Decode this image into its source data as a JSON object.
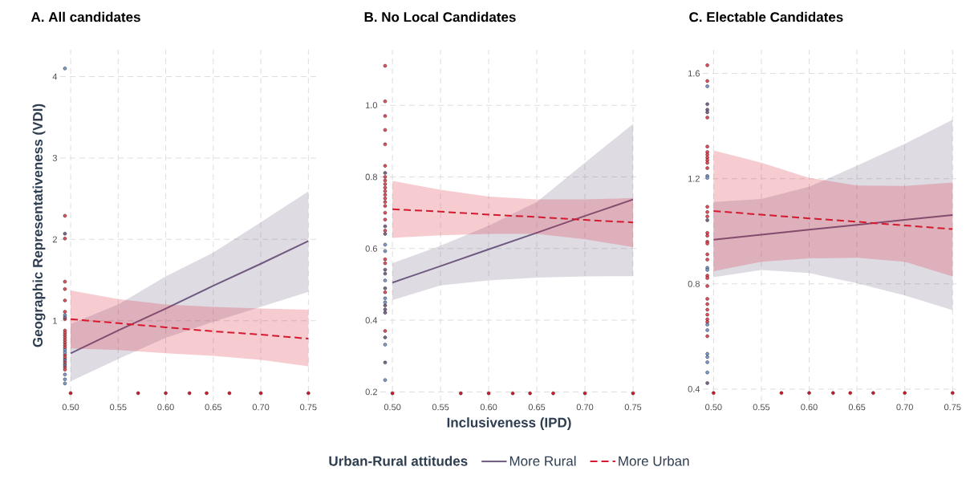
{
  "chart_data": [
    {
      "type": "line",
      "title": "A. All candidates",
      "ylabel": "Geographic Representativeness (VDI)",
      "xlim": [
        0.489,
        0.759
      ],
      "ylim": [
        0.012,
        4.33
      ],
      "xticks": [
        {
          "value": 0.5,
          "label": "0.50"
        },
        {
          "value": 0.55,
          "label": "0.55"
        },
        {
          "value": 0.6,
          "label": "0.60"
        },
        {
          "value": 0.65,
          "label": "0.65"
        },
        {
          "value": 0.7,
          "label": "0.70"
        },
        {
          "value": 0.75,
          "label": "0.75"
        }
      ],
      "yticks": [
        1,
        2,
        3,
        4
      ],
      "grid": true,
      "series": [
        {
          "type": "line",
          "color": "#6e5a80",
          "line_style": "solid",
          "x": [
            0.5,
            0.55,
            0.6,
            0.65,
            0.7,
            0.75
          ],
          "values": [
            0.6,
            0.88,
            1.15,
            1.43,
            1.7,
            1.98
          ],
          "lower": [
            0.256,
            0.53,
            0.79,
            0.987,
            1.17,
            1.355
          ],
          "upper": [
            0.96,
            1.2,
            1.545,
            1.838,
            2.21,
            2.59
          ]
        },
        {
          "type": "line",
          "color": "#d7192e",
          "line_style": "dashed",
          "x": [
            0.5,
            0.55,
            0.6,
            0.65,
            0.7,
            0.75
          ],
          "values": [
            1.02,
            0.97,
            0.92,
            0.87,
            0.83,
            0.78
          ],
          "lower": [
            0.66,
            0.64,
            0.6,
            0.57,
            0.52,
            0.44
          ],
          "upper": [
            1.372,
            1.267,
            1.2,
            1.17,
            1.15,
            1.135
          ]
        },
        {
          "type": "scatter",
          "color": "#e2505e",
          "x": [
            0.494,
            0.494,
            0.494,
            0.494,
            0.494,
            0.494,
            0.494,
            0.494,
            0.494,
            0.494,
            0.494,
            0.494,
            0.494,
            0.494,
            0.494,
            0.494,
            0.494,
            0.494,
            0.494,
            0.494
          ],
          "values": [
            2.29,
            2.01,
            1.48,
            1.39,
            1.25,
            1.11,
            1.02,
            0.88,
            0.85,
            0.82,
            0.79,
            0.76,
            0.73,
            0.7,
            0.67,
            0.58,
            0.55,
            0.49,
            0.43,
            0.4
          ]
        },
        {
          "type": "scatter",
          "color": "#7f9cc9",
          "x": [
            0.494,
            0.494,
            0.494,
            0.494,
            0.494,
            0.494,
            0.494
          ],
          "values": [
            4.1,
            1.07,
            0.64,
            0.61,
            0.34,
            0.28,
            0.23
          ]
        },
        {
          "type": "scatter",
          "color": "#7d6a8a",
          "x": [
            0.494,
            0.494,
            0.494,
            0.494
          ],
          "values": [
            2.07,
            1.04,
            0.52,
            0.46
          ]
        },
        {
          "type": "scatter",
          "color": "#d7192e",
          "x": [
            0.5,
            0.571,
            0.6,
            0.625,
            0.643,
            0.667,
            0.7,
            0.75
          ],
          "values": [
            0.11,
            0.11,
            0.11,
            0.11,
            0.11,
            0.11,
            0.11,
            0.11
          ]
        }
      ]
    },
    {
      "type": "line",
      "title": "B. No Local Candidates",
      "xlabel": "Inclusiveness (IPD)",
      "legend_title": "Urban-Rural attitudes",
      "legend": "bottom",
      "xlim": [
        0.4874,
        0.755
      ],
      "ylim": [
        0.174,
        1.155
      ],
      "xticks": [
        {
          "value": 0.5,
          "label": "0.50"
        },
        {
          "value": 0.55,
          "label": "0.55"
        },
        {
          "value": 0.6,
          "label": "0.60"
        },
        {
          "value": 0.65,
          "label": "0.65"
        },
        {
          "value": 0.7,
          "label": "0.70"
        },
        {
          "value": 0.75,
          "label": "0.75"
        }
      ],
      "yticks": [
        0.2,
        0.4,
        0.6,
        0.8,
        {
          "value": 1.0,
          "label": "1.0"
        }
      ],
      "grid": true,
      "series": [
        {
          "type": "line",
          "name": "More Rural",
          "color": "#6e5a80",
          "line_style": "solid",
          "x": [
            0.5,
            0.55,
            0.6,
            0.65,
            0.7,
            0.75
          ],
          "values": [
            0.505,
            0.551,
            0.598,
            0.644,
            0.691,
            0.737
          ],
          "lower": [
            0.456,
            0.497,
            0.511,
            0.519,
            0.522,
            0.523
          ],
          "upper": [
            0.559,
            0.608,
            0.664,
            0.73,
            0.84,
            0.948
          ]
        },
        {
          "type": "line",
          "name": "More Urban",
          "color": "#d7192e",
          "line_style": "dashed",
          "x": [
            0.5,
            0.55,
            0.6,
            0.65,
            0.7,
            0.75
          ],
          "values": [
            0.71,
            0.703,
            0.695,
            0.688,
            0.68,
            0.673
          ],
          "lower": [
            0.63,
            0.637,
            0.641,
            0.641,
            0.626,
            0.604
          ],
          "upper": [
            0.789,
            0.764,
            0.745,
            0.737,
            0.737,
            0.741
          ]
        },
        {
          "type": "scatter",
          "color": "#e2505e",
          "x": [
            0.4924,
            0.4924,
            0.4924,
            0.4924,
            0.4924,
            0.4924,
            0.4924,
            0.4924,
            0.4924,
            0.4924,
            0.4924,
            0.4924,
            0.4924,
            0.4924,
            0.4924,
            0.4924,
            0.4924,
            0.4924,
            0.4924,
            0.4924,
            0.4924,
            0.4924
          ],
          "values": [
            1.11,
            1.011,
            0.97,
            0.931,
            0.891,
            0.831,
            0.8,
            0.79,
            0.78,
            0.77,
            0.76,
            0.75,
            0.74,
            0.73,
            0.719,
            0.7,
            0.681,
            0.65,
            0.57,
            0.559,
            0.478,
            0.37
          ]
        },
        {
          "type": "scatter",
          "color": "#7f9cc9",
          "x": [
            0.4924,
            0.4924,
            0.4924,
            0.4924,
            0.4924,
            0.4924,
            0.4924
          ],
          "values": [
            0.611,
            0.593,
            0.511,
            0.461,
            0.45,
            0.332,
            0.233
          ]
        },
        {
          "type": "scatter",
          "color": "#7d6a8a",
          "x": [
            0.4924,
            0.4924,
            0.4924,
            0.4924,
            0.4924,
            0.4924,
            0.4924,
            0.4924,
            0.4924,
            0.4924,
            0.4924
          ],
          "values": [
            0.811,
            0.662,
            0.641,
            0.541,
            0.53,
            0.489,
            0.441,
            0.43,
            0.421,
            0.352,
            0.282
          ]
        },
        {
          "type": "scatter",
          "color": "#d7192e",
          "x": [
            0.5,
            0.571,
            0.6,
            0.625,
            0.643,
            0.667,
            0.7,
            0.75
          ],
          "values": [
            0.196,
            0.196,
            0.196,
            0.196,
            0.196,
            0.196,
            0.196,
            0.196
          ]
        }
      ]
    },
    {
      "type": "line",
      "title": "C. Electable Candidates",
      "xlim": [
        0.4888,
        0.754
      ],
      "ylim": [
        0.354,
        1.69
      ],
      "xticks": [
        {
          "value": 0.5,
          "label": "0.50"
        },
        {
          "value": 0.55,
          "label": "0.55"
        },
        {
          "value": 0.6,
          "label": "0.60"
        },
        {
          "value": 0.65,
          "label": "0.65"
        },
        {
          "value": 0.7,
          "label": "0.70"
        },
        {
          "value": 0.75,
          "label": "0.75"
        }
      ],
      "yticks": [
        0.4,
        0.8,
        1.2,
        1.6
      ],
      "grid": true,
      "series": [
        {
          "type": "line",
          "color": "#6e5a80",
          "line_style": "solid",
          "x": [
            0.5,
            0.55,
            0.6,
            0.65,
            0.7,
            0.75
          ],
          "values": [
            0.968,
            0.987,
            1.006,
            1.024,
            1.043,
            1.062
          ],
          "lower": [
            0.825,
            0.853,
            0.841,
            0.802,
            0.756,
            0.7
          ],
          "upper": [
            1.111,
            1.123,
            1.169,
            1.249,
            1.332,
            1.424
          ]
        },
        {
          "type": "line",
          "color": "#d7192e",
          "line_style": "dashed",
          "x": [
            0.5,
            0.55,
            0.6,
            0.65,
            0.7,
            0.75
          ],
          "values": [
            1.077,
            1.063,
            1.049,
            1.036,
            1.022,
            1.008
          ],
          "lower": [
            0.848,
            0.884,
            0.897,
            0.899,
            0.884,
            0.828
          ],
          "upper": [
            1.307,
            1.261,
            1.203,
            1.174,
            1.172,
            1.185
          ]
        },
        {
          "type": "scatter",
          "color": "#e2505e",
          "x": [
            0.4935,
            0.4935,
            0.4935,
            0.4935,
            0.4935,
            0.4935,
            0.4935,
            0.4935,
            0.4935,
            0.4935,
            0.4935,
            0.4935,
            0.4935,
            0.4935,
            0.4935,
            0.4935,
            0.4935,
            0.4935,
            0.4935,
            0.4935,
            0.4935,
            0.4935,
            0.4935,
            0.4935,
            0.4935,
            0.4935,
            0.4935,
            0.4935,
            0.4935
          ],
          "values": [
            1.631,
            1.571,
            1.432,
            1.322,
            1.301,
            1.291,
            1.28,
            1.27,
            1.26,
            1.24,
            1.093,
            1.073,
            1.056,
            0.994,
            0.983,
            0.96,
            0.953,
            0.912,
            0.892,
            0.831,
            0.822,
            0.792,
            0.743,
            0.723,
            0.702,
            0.683,
            0.665,
            0.655,
            0.601
          ]
        },
        {
          "type": "scatter",
          "color": "#7f9cc9",
          "x": [
            0.4935,
            0.4935,
            0.4935,
            0.4935,
            0.4935,
            0.4935,
            0.4935,
            0.4935,
            0.4935,
            0.4935,
            0.4935
          ],
          "values": [
            1.551,
            1.21,
            1.203,
            0.861,
            0.853,
            0.645,
            0.624,
            0.534,
            0.522,
            0.502,
            0.463
          ]
        },
        {
          "type": "scatter",
          "color": "#7d6a8a",
          "x": [
            0.4935,
            0.4935,
            0.4935,
            0.4935,
            0.4935
          ],
          "values": [
            1.483,
            1.462,
            1.452,
            1.042,
            0.423
          ]
        },
        {
          "type": "scatter",
          "color": "#d7192e",
          "x": [
            0.5,
            0.571,
            0.6,
            0.625,
            0.643,
            0.667,
            0.7,
            0.75
          ],
          "values": [
            0.385,
            0.385,
            0.385,
            0.385,
            0.385,
            0.385,
            0.385,
            0.385
          ]
        }
      ]
    }
  ]
}
